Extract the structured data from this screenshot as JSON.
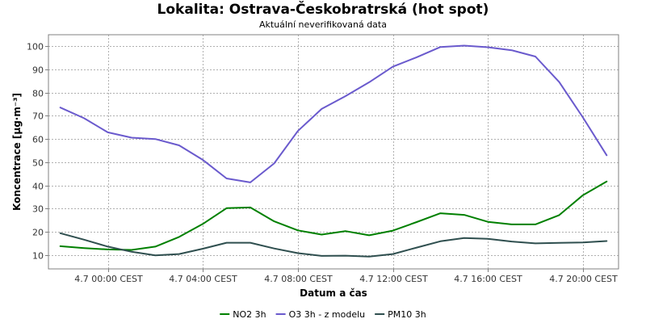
{
  "chart_data": {
    "type": "line",
    "title": "Lokalita: Ostrava-Českobratrská (hot spot)",
    "subtitle": "Aktuální neverifikovaná data",
    "xlabel": "Datum a čas",
    "ylabel": "Koncentrace [µg·m⁻³]",
    "ylim": [
      4,
      105
    ],
    "y_ticks": [
      10,
      20,
      30,
      40,
      50,
      60,
      70,
      80,
      90,
      100
    ],
    "x_tick_labels": [
      "4.7 00:00 CEST",
      "4.7 04:00 CEST",
      "4.7 08:00 CEST",
      "4.7 12:00 CEST",
      "4.7 16:00 CEST",
      "4.7 20:00 CEST"
    ],
    "x_tick_hours": [
      0,
      4,
      8,
      12,
      16,
      20
    ],
    "xlim_hours": [
      -2.5,
      21.5
    ],
    "grid": true,
    "legend_position": "bottom",
    "series": [
      {
        "name": "NO2 3h",
        "color": "#008000",
        "hours": [
          -2,
          -1,
          0,
          1,
          2,
          3,
          4,
          5,
          6,
          7,
          8,
          9,
          10,
          11,
          12,
          13,
          14,
          15,
          16,
          17,
          18,
          19,
          20,
          21
        ],
        "values": [
          13.8,
          13.0,
          12.4,
          12.2,
          13.6,
          17.8,
          23.4,
          30.2,
          30.5,
          24.5,
          20.6,
          18.8,
          20.3,
          18.5,
          20.5,
          24.2,
          28.0,
          27.3,
          24.3,
          23.2,
          23.2,
          27.2,
          35.8,
          41.7
        ]
      },
      {
        "name": "O3 3h - z modelu",
        "color": "#6a5acd",
        "hours": [
          -2,
          -1,
          0,
          1,
          2,
          3,
          4,
          5,
          6,
          7,
          8,
          9,
          10,
          11,
          12,
          13,
          14,
          15,
          16,
          17,
          18,
          19,
          20,
          21
        ],
        "values": [
          73.6,
          69.0,
          62.9,
          60.6,
          60.0,
          57.3,
          51.0,
          43.0,
          41.3,
          49.5,
          63.5,
          73.0,
          78.5,
          84.5,
          91.2,
          95.3,
          99.7,
          100.3,
          99.6,
          98.3,
          95.6,
          84.6,
          69.3,
          53.0
        ]
      },
      {
        "name": "PM10 3h",
        "color": "#2f4f4f",
        "hours": [
          -2,
          -1,
          0,
          1,
          2,
          3,
          4,
          5,
          6,
          7,
          8,
          9,
          10,
          11,
          12,
          13,
          14,
          15,
          16,
          17,
          18,
          19,
          20,
          21
        ],
        "values": [
          19.4,
          16.6,
          13.6,
          11.4,
          9.8,
          10.4,
          12.7,
          15.3,
          15.3,
          12.8,
          10.8,
          9.6,
          9.7,
          9.3,
          10.4,
          13.2,
          15.9,
          17.3,
          17.0,
          15.8,
          15.0,
          15.2,
          15.4,
          16.0
        ]
      }
    ]
  }
}
